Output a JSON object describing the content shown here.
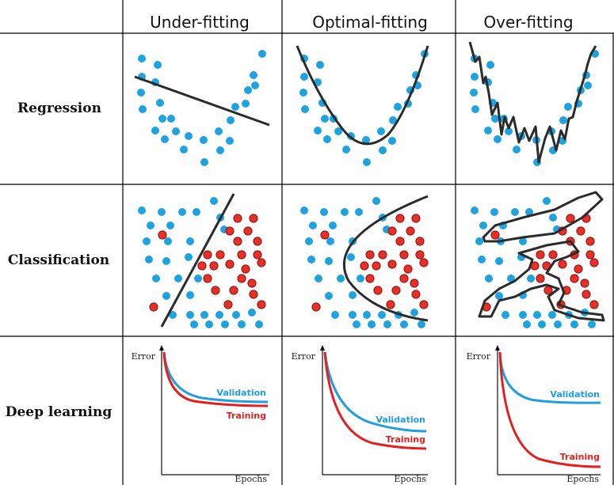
{
  "columns": [
    "Under-fitting",
    "Optimal-fitting",
    "Over-fitting"
  ],
  "rows": [
    "Regression",
    "Classification",
    "Deep learning"
  ],
  "axes": {
    "y_label": "Error",
    "x_label": "Epochs"
  },
  "curves": {
    "validation_label": "Validation",
    "training_label": "Training"
  },
  "colors": {
    "blue_point": "#1fa3e0",
    "red_point": "#e8302a",
    "fit_line": "#2b2b2b",
    "validation_curve": "#1f9ee0",
    "training_curve": "#e51f1f",
    "grid_line": "#000000"
  }
}
